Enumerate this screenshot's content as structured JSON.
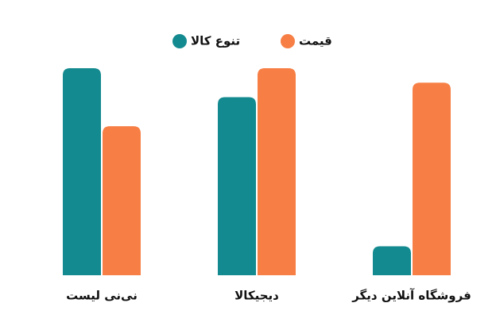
{
  "chart_data": {
    "type": "bar",
    "categories": [
      "نی‌نی لیست",
      "دیجیکالا",
      "فروشگاه آنلاین دیگر"
    ],
    "series": [
      {
        "name": "تنوع کالا",
        "color": "#138a8f",
        "values": [
          100,
          86,
          14
        ]
      },
      {
        "name": "قیمت",
        "color": "#f77f45",
        "values": [
          72,
          100,
          93
        ]
      }
    ],
    "ylim": [
      0,
      100
    ]
  }
}
